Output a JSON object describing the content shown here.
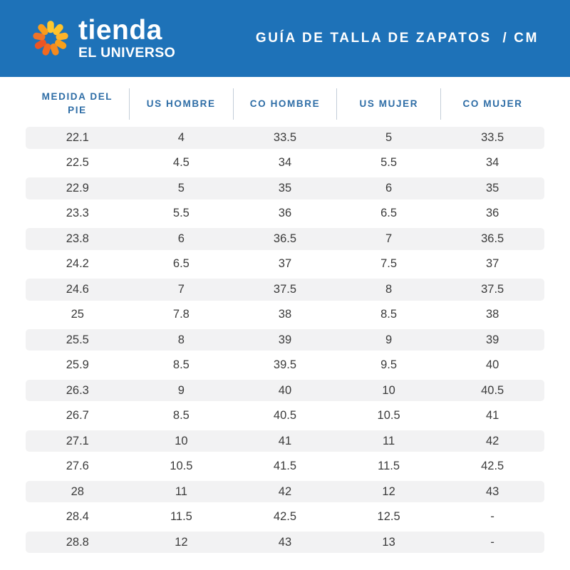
{
  "banner": {
    "brand_line1": "tienda",
    "brand_line2": "EL UNIVERSO",
    "title": "GUÍA DE TALLA DE ZAPATOS  / CM",
    "background_color": "#1E72B8",
    "logo_icon": "sunburst-icon",
    "logo_ray_colors": [
      "#FFC82F",
      "#FFC32B",
      "#FFB42A",
      "#F9A01B",
      "#F58A1E",
      "#F2691F",
      "#EC5424",
      "#F07327",
      "#F99C1C"
    ]
  },
  "table": {
    "header_text_color": "#2E6DA6",
    "divider_color": "#C3CDD8",
    "stripe_color": "#F2F2F3",
    "columns": [
      "MEDIDA DEL PIE",
      "US HOMBRE",
      "CO HOMBRE",
      "US MUJER",
      "CO MUJER"
    ]
  },
  "chart_data": {
    "type": "table",
    "title": "GUÍA DE TALLA DE ZAPATOS / CM",
    "columns": [
      "MEDIDA DEL PIE",
      "US HOMBRE",
      "CO HOMBRE",
      "US MUJER",
      "CO MUJER"
    ],
    "rows": [
      [
        "22.1",
        "4",
        "33.5",
        "5",
        "33.5"
      ],
      [
        "22.5",
        "4.5",
        "34",
        "5.5",
        "34"
      ],
      [
        "22.9",
        "5",
        "35",
        "6",
        "35"
      ],
      [
        "23.3",
        "5.5",
        "36",
        "6.5",
        "36"
      ],
      [
        "23.8",
        "6",
        "36.5",
        "7",
        "36.5"
      ],
      [
        "24.2",
        "6.5",
        "37",
        "7.5",
        "37"
      ],
      [
        "24.6",
        "7",
        "37.5",
        "8",
        "37.5"
      ],
      [
        "25",
        "7.8",
        "38",
        "8.5",
        "38"
      ],
      [
        "25.5",
        "8",
        "39",
        "9",
        "39"
      ],
      [
        "25.9",
        "8.5",
        "39.5",
        "9.5",
        "40"
      ],
      [
        "26.3",
        "9",
        "40",
        "10",
        "40.5"
      ],
      [
        "26.7",
        "8.5",
        "40.5",
        "10.5",
        "41"
      ],
      [
        "27.1",
        "10",
        "41",
        "11",
        "42"
      ],
      [
        "27.6",
        "10.5",
        "41.5",
        "11.5",
        "42.5"
      ],
      [
        "28",
        "11",
        "42",
        "12",
        "43"
      ],
      [
        "28.4",
        "11.5",
        "42.5",
        "12.5",
        "-"
      ],
      [
        "28.8",
        "12",
        "43",
        "13",
        "-"
      ]
    ]
  }
}
